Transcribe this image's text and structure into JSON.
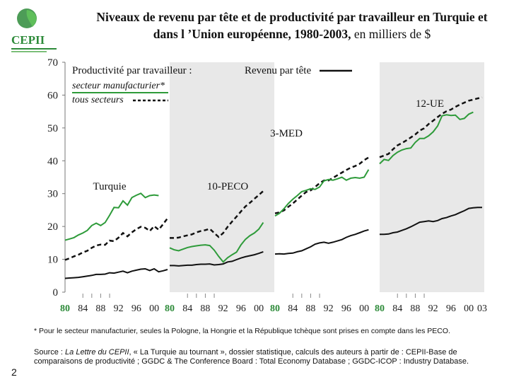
{
  "logo": {
    "text": "CEPII",
    "icon": "globe-leaf-icon",
    "color": "#2e8b3a"
  },
  "title": {
    "main": "Niveaux de revenu par tête et de productivité par travailleur en Turquie et dans l ’Union européenne, 1980-2003,",
    "unit": " en milliers de $"
  },
  "page_number": "2",
  "footnote": "* Pour le secteur manufacturier, seules la Pologne, la Hongrie et la République tchèque sont prises en compte dans les PECO.",
  "source": {
    "prefix": "Source : ",
    "publication": "La Lettre du CEPII",
    "rest": ", « La Turquie au tournant », dossier statistique, calculs des auteurs à partir de : CEPII-Base de comparaisons de productivité ; GGDC & The Conference Board : Total Economy Database ; GGDC-ICOP : Industry Database."
  },
  "chart_data": {
    "type": "line",
    "title": "Niveaux de revenu par tête et de productivité par travailleur, 1980-2003",
    "ylabel": "milliers de $",
    "ylim": [
      0,
      70
    ],
    "yticks": [
      "0",
      "10",
      "20",
      "30",
      "40",
      "50",
      "60",
      "70"
    ],
    "xtick_labels": [
      "80",
      "84",
      "88",
      "92",
      "96",
      "00",
      "03"
    ],
    "xtick_color": "#2e8b3a",
    "shaded_panels": [
      "10-PECO",
      "12-UE"
    ],
    "colors": {
      "revenu": "#111111",
      "manufacturier": "#2e9b3a",
      "tous": "#111111",
      "shade": "#e8e8e8"
    },
    "legend": {
      "header": "Productivité par travailleur :",
      "manufacturier": "secteur manufacturier*",
      "tous": "tous secteurs",
      "revenu": "Revenu par tête"
    },
    "panels": [
      {
        "name": "Turquie",
        "years": [
          1980,
          2003
        ],
        "revenu": [
          4.2,
          4.3,
          4.4,
          4.5,
          4.7,
          4.9,
          5.1,
          5.4,
          5.4,
          5.5,
          5.9,
          5.8,
          6.1,
          6.4,
          5.9,
          6.4,
          6.7,
          7.0,
          7.1,
          6.6,
          7.1,
          6.2,
          6.5,
          6.9
        ],
        "tous": [
          9.8,
          10.3,
          10.9,
          11.4,
          12.1,
          12.6,
          13.5,
          14.2,
          14.5,
          14.4,
          15.7,
          15.5,
          16.6,
          18.0,
          17.0,
          18.2,
          19.2,
          19.9,
          19.6,
          18.6,
          20.1,
          19.0,
          20.7,
          22.5
        ],
        "manufacturier": [
          15.8,
          16.2,
          16.6,
          17.4,
          18.0,
          18.8,
          20.3,
          21.0,
          20.3,
          21.2,
          23.4,
          25.8,
          25.7,
          27.8,
          26.5,
          28.8,
          29.5,
          30.1,
          28.8,
          29.4,
          29.6,
          29.4,
          null,
          null
        ]
      },
      {
        "name": "10-PECO",
        "years": [
          1980,
          2003
        ],
        "revenu": [
          8.1,
          8.1,
          8.0,
          8.1,
          8.2,
          8.2,
          8.4,
          8.5,
          8.5,
          8.6,
          8.3,
          8.4,
          8.6,
          9.2,
          9.4,
          9.9,
          10.4,
          10.8,
          11.1,
          11.4,
          11.8,
          12.3,
          null,
          null
        ],
        "tous": [
          16.5,
          16.5,
          16.6,
          17.0,
          17.3,
          17.6,
          18.2,
          18.6,
          18.9,
          19.3,
          18.0,
          16.8,
          18.0,
          19.9,
          21.5,
          23.0,
          24.6,
          26.1,
          27.2,
          28.4,
          29.6,
          30.8,
          null,
          null
        ],
        "manufacturier": [
          13.5,
          12.9,
          12.6,
          13.1,
          13.6,
          13.9,
          14.1,
          14.3,
          14.4,
          14.2,
          12.8,
          10.9,
          9.2,
          10.5,
          11.4,
          12.2,
          14.4,
          16.1,
          17.2,
          18.0,
          19.2,
          21.2,
          null,
          null
        ]
      },
      {
        "name": "3-MED",
        "years": [
          1980,
          2003
        ],
        "revenu": [
          11.6,
          11.7,
          11.6,
          11.8,
          11.9,
          12.3,
          12.6,
          13.2,
          13.8,
          14.6,
          15.0,
          15.2,
          14.9,
          15.2,
          15.6,
          16.0,
          16.7,
          17.2,
          17.6,
          18.1,
          18.6,
          19.0,
          null,
          null
        ],
        "tous": [
          24.0,
          24.3,
          24.9,
          26.0,
          27.0,
          28.2,
          29.4,
          30.5,
          31.0,
          32.0,
          33.2,
          34.0,
          34.0,
          34.8,
          35.6,
          36.4,
          37.2,
          37.9,
          38.4,
          39.1,
          40.2,
          41.0,
          null,
          null
        ],
        "manufacturier": [
          23.2,
          24.0,
          25.4,
          27.0,
          28.3,
          29.4,
          30.6,
          31.0,
          31.5,
          31.3,
          32.0,
          33.9,
          34.3,
          34.1,
          34.5,
          35.0,
          34.1,
          34.7,
          34.9,
          34.7,
          35.0,
          37.3,
          null,
          null
        ]
      },
      {
        "name": "12-UE",
        "years": [
          1980,
          2003
        ],
        "revenu": [
          17.6,
          17.6,
          17.7,
          18.1,
          18.3,
          18.8,
          19.3,
          19.9,
          20.6,
          21.3,
          21.5,
          21.7,
          21.5,
          21.8,
          22.4,
          22.7,
          23.2,
          23.6,
          24.2,
          24.8,
          25.5,
          25.7,
          25.8,
          25.8
        ],
        "tous": [
          41.1,
          41.6,
          42.1,
          43.5,
          44.7,
          45.4,
          46.2,
          47.1,
          48.0,
          49.2,
          49.9,
          51.2,
          52.2,
          53.3,
          54.3,
          55.1,
          55.6,
          56.4,
          57.1,
          57.7,
          58.3,
          58.6,
          59.0,
          59.3
        ],
        "manufacturier": [
          39.1,
          40.4,
          40.1,
          41.6,
          42.6,
          43.3,
          43.7,
          43.9,
          45.6,
          46.8,
          46.8,
          47.6,
          48.8,
          50.6,
          53.7,
          54.0,
          53.8,
          53.9,
          52.6,
          52.9,
          54.2,
          54.8,
          null,
          null
        ]
      }
    ]
  }
}
